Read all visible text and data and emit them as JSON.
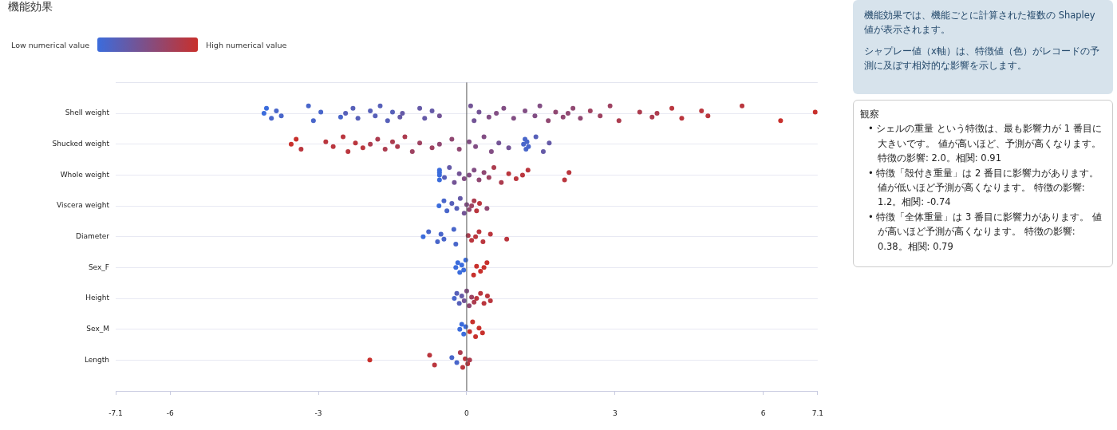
{
  "chart_data": {
    "type": "scatter",
    "orientation": "horizontal",
    "title": "機能効果",
    "categories": [
      "Shell weight",
      "Shucked weight",
      "Whole weight",
      "Viscera weight",
      "Diameter",
      "Sex_F",
      "Height",
      "Sex_M",
      "Length"
    ],
    "xlim": [
      -7.1,
      7.1
    ],
    "xticks": [
      -7.1,
      -6,
      -3,
      0,
      3,
      6,
      7.1
    ],
    "grid": "y",
    "ref_lines": [
      {
        "axis": "x",
        "value": 0,
        "color": "#555555"
      }
    ],
    "series": [
      {
        "x": [
          "Shell weight",
          "Shell weight",
          "Shell weight",
          "Shell weight",
          "Shell weight",
          "Shell weight",
          "Shell weight",
          "Shell weight",
          "Shell weight",
          "Shell weight",
          "Shell weight",
          "Shell weight",
          "Shell weight",
          "Shell weight",
          "Shell weight",
          "Shell weight",
          "Shell weight",
          "Shell weight",
          "Shell weight",
          "Shell weight",
          "Shell weight",
          "Shell weight",
          "Shell weight",
          "Shell weight",
          "Shell weight",
          "Shell weight",
          "Shell weight",
          "Shell weight",
          "Shell weight",
          "Shell weight",
          "Shell weight",
          "Shell weight",
          "Shell weight",
          "Shell weight",
          "Shell weight",
          "Shell weight",
          "Shell weight",
          "Shell weight",
          "Shell weight",
          "Shell weight",
          "Shell weight",
          "Shell weight",
          "Shell weight",
          "Shell weight",
          "Shell weight",
          "Shell weight",
          "Shell weight",
          "Shell weight",
          "Shell weight",
          "Shell weight",
          "Shell weight",
          "Shell weight",
          "Shell weight"
        ],
        "values": [
          -4.1,
          -4.05,
          -3.95,
          -3.85,
          -3.75,
          -3.2,
          -3.1,
          -2.95,
          -2.55,
          -2.45,
          -2.3,
          -2.2,
          -1.95,
          -1.85,
          -1.75,
          -1.6,
          -1.5,
          -1.35,
          -1.3,
          -0.95,
          -0.85,
          -0.7,
          -0.55,
          0.08,
          0.15,
          0.25,
          0.45,
          0.6,
          0.75,
          0.95,
          1.18,
          1.38,
          1.48,
          1.65,
          1.8,
          1.95,
          2.05,
          2.15,
          2.3,
          2.5,
          2.7,
          2.9,
          3.08,
          3.5,
          3.75,
          3.85,
          4.15,
          4.35,
          4.75,
          4.88,
          5.57,
          6.35,
          7.05
        ],
        "colors": [
          "#3b6cdc",
          "#3b6cdc",
          "#4966ca",
          "#4966ca",
          "#4966ca",
          "#4966ca",
          "#4966ca",
          "#4966ca",
          "#4966ca",
          "#5760b9",
          "#5760b9",
          "#5760b9",
          "#5760b9",
          "#5760b9",
          "#5760b9",
          "#5760b9",
          "#5760b9",
          "#655aa7",
          "#655aa7",
          "#655aa7",
          "#655aa7",
          "#655aa7",
          "#735496",
          "#735496",
          "#735496",
          "#735496",
          "#824e84",
          "#824e84",
          "#824e84",
          "#824e84",
          "#824e84",
          "#824e84",
          "#824e84",
          "#904872",
          "#904872",
          "#904872",
          "#904872",
          "#904872",
          "#904872",
          "#9e4261",
          "#9e4261",
          "#9e4261",
          "#ac3c4f",
          "#ac3c4f",
          "#ac3c4f",
          "#ac3c4f",
          "#ba363e",
          "#ba363e",
          "#ba363e",
          "#ba363e",
          "#ba363e",
          "#c8302c",
          "#c8302c"
        ]
      },
      {
        "x": [
          "Shucked weight",
          "Shucked weight",
          "Shucked weight",
          "Shucked weight",
          "Shucked weight",
          "Shucked weight",
          "Shucked weight",
          "Shucked weight",
          "Shucked weight",
          "Shucked weight",
          "Shucked weight",
          "Shucked weight",
          "Shucked weight",
          "Shucked weight",
          "Shucked weight",
          "Shucked weight",
          "Shucked weight",
          "Shucked weight",
          "Shucked weight",
          "Shucked weight",
          "Shucked weight",
          "Shucked weight",
          "Shucked weight",
          "Shucked weight",
          "Shucked weight",
          "Shucked weight",
          "Shucked weight",
          "Shucked weight",
          "Shucked weight",
          "Shucked weight",
          "Shucked weight",
          "Shucked weight",
          "Shucked weight",
          "Shucked weight",
          "Shucked weight"
        ],
        "values": [
          -3.55,
          -3.45,
          -3.35,
          -2.85,
          -2.7,
          -2.5,
          -2.4,
          -2.25,
          -2.1,
          -1.95,
          -1.8,
          -1.65,
          -1.5,
          -1.4,
          -1.25,
          -1.1,
          -0.95,
          -0.7,
          -0.55,
          -0.3,
          -0.15,
          0.05,
          0.18,
          0.35,
          0.5,
          0.65,
          0.85,
          1.15,
          1.18,
          1.2,
          1.22,
          1.25,
          1.4,
          1.55,
          1.67
        ],
        "colors": [
          "#c8302c",
          "#c8302c",
          "#ba363e",
          "#ba363e",
          "#ba363e",
          "#ba363e",
          "#ba363e",
          "#ba363e",
          "#ba363e",
          "#ac3c4f",
          "#ac3c4f",
          "#ac3c4f",
          "#ac3c4f",
          "#ac3c4f",
          "#ac3c4f",
          "#9e4261",
          "#9e4261",
          "#9e4261",
          "#904872",
          "#904872",
          "#904872",
          "#824e84",
          "#824e84",
          "#824e84",
          "#824e84",
          "#735496",
          "#735496",
          "#4966ca",
          "#4966ca",
          "#4966ca",
          "#4966ca",
          "#4966ca",
          "#5760b9",
          "#655aa7",
          "#655aa7"
        ]
      },
      {
        "x": [
          "Whole weight",
          "Whole weight",
          "Whole weight",
          "Whole weight",
          "Whole weight",
          "Whole weight",
          "Whole weight",
          "Whole weight",
          "Whole weight",
          "Whole weight",
          "Whole weight",
          "Whole weight",
          "Whole weight",
          "Whole weight",
          "Whole weight",
          "Whole weight",
          "Whole weight",
          "Whole weight",
          "Whole weight",
          "Whole weight",
          "Whole weight",
          "Whole weight"
        ],
        "values": [
          -0.55,
          -0.55,
          -0.55,
          -0.55,
          -0.45,
          -0.35,
          -0.25,
          -0.15,
          -0.05,
          0.05,
          0.15,
          0.25,
          0.35,
          0.45,
          0.55,
          0.7,
          0.85,
          1.0,
          1.13,
          1.24,
          1.98,
          2.07
        ],
        "colors": [
          "#3b6cdc",
          "#3b6cdc",
          "#3b6cdc",
          "#3b6cdc",
          "#5760b9",
          "#655aa7",
          "#735496",
          "#735496",
          "#824e84",
          "#824e84",
          "#824e84",
          "#904872",
          "#904872",
          "#9e4261",
          "#ac3c4f",
          "#ac3c4f",
          "#ba363e",
          "#ba363e",
          "#ba363e",
          "#ba363e",
          "#ba363e",
          "#ba363e"
        ]
      },
      {
        "x": [
          "Viscera weight",
          "Viscera weight",
          "Viscera weight",
          "Viscera weight",
          "Viscera weight",
          "Viscera weight",
          "Viscera weight",
          "Viscera weight",
          "Viscera weight",
          "Viscera weight",
          "Viscera weight",
          "Viscera weight",
          "Viscera weight",
          "Viscera weight"
        ],
        "values": [
          -0.56,
          -0.46,
          -0.4,
          -0.3,
          -0.2,
          -0.13,
          -0.05,
          0.0,
          0.05,
          0.1,
          0.15,
          0.2,
          0.26,
          0.41
        ],
        "colors": [
          "#3b6cdc",
          "#4966ca",
          "#4966ca",
          "#5760b9",
          "#5760b9",
          "#655aa7",
          "#735496",
          "#824e84",
          "#904872",
          "#9e4261",
          "#ac3c4f",
          "#ba363e",
          "#ba363e",
          "#904872"
        ]
      },
      {
        "x": [
          "Diameter",
          "Diameter",
          "Diameter",
          "Diameter",
          "Diameter",
          "Diameter",
          "Diameter",
          "Diameter",
          "Diameter",
          "Diameter",
          "Diameter",
          "Diameter",
          "Diameter",
          "Diameter"
        ],
        "values": [
          -0.88,
          -0.77,
          -0.59,
          -0.52,
          -0.46,
          -0.26,
          -0.22,
          0.03,
          0.1,
          0.18,
          0.25,
          0.33,
          0.48,
          0.81
        ],
        "colors": [
          "#3b6cdc",
          "#4966ca",
          "#4966ca",
          "#4966ca",
          "#4966ca",
          "#4966ca",
          "#4966ca",
          "#ac3c4f",
          "#ba363e",
          "#ba363e",
          "#ba363e",
          "#ba363e",
          "#ba363e",
          "#ba363e"
        ]
      },
      {
        "x": [
          "Sex_F",
          "Sex_F",
          "Sex_F",
          "Sex_F",
          "Sex_F",
          "Sex_F",
          "Sex_F",
          "Sex_F",
          "Sex_F",
          "Sex_F",
          "Sex_F"
        ],
        "values": [
          -0.22,
          -0.18,
          -0.14,
          -0.1,
          -0.06,
          -0.02,
          0.14,
          0.2,
          0.28,
          0.35,
          0.41
        ],
        "colors": [
          "#3b6cdc",
          "#3b6cdc",
          "#3b6cdc",
          "#3b6cdc",
          "#3b6cdc",
          "#3b6cdc",
          "#c8302c",
          "#c8302c",
          "#c8302c",
          "#c8302c",
          "#c8302c"
        ]
      },
      {
        "x": [
          "Height",
          "Height",
          "Height",
          "Height",
          "Height",
          "Height",
          "Height",
          "Height",
          "Height",
          "Height",
          "Height",
          "Height",
          "Height",
          "Height"
        ],
        "values": [
          -0.25,
          -0.2,
          -0.15,
          -0.1,
          -0.05,
          0.0,
          0.05,
          0.1,
          0.15,
          0.2,
          0.28,
          0.35,
          0.42,
          0.48
        ],
        "colors": [
          "#4966ca",
          "#5760b9",
          "#5760b9",
          "#655aa7",
          "#735496",
          "#824e84",
          "#904872",
          "#9e4261",
          "#ac3c4f",
          "#ba363e",
          "#ba363e",
          "#ba363e",
          "#ba363e",
          "#ba363e"
        ]
      },
      {
        "x": [
          "Sex_M",
          "Sex_M",
          "Sex_M",
          "Sex_M",
          "Sex_M",
          "Sex_M",
          "Sex_M",
          "Sex_M",
          "Sex_M"
        ],
        "values": [
          -0.14,
          -0.1,
          -0.06,
          -0.02,
          0.06,
          0.12,
          0.18,
          0.25,
          0.32
        ],
        "colors": [
          "#3b6cdc",
          "#3b6cdc",
          "#3b6cdc",
          "#3b6cdc",
          "#c8302c",
          "#c8302c",
          "#c8302c",
          "#c8302c",
          "#c8302c"
        ]
      },
      {
        "x": [
          "Length",
          "Length",
          "Length",
          "Length",
          "Length",
          "Length",
          "Length",
          "Length",
          "Length",
          "Length"
        ],
        "values": [
          -1.96,
          -0.75,
          -0.65,
          -0.3,
          -0.2,
          -0.13,
          -0.08,
          -0.03,
          0.02,
          0.06
        ],
        "colors": [
          "#c8302c",
          "#ba363e",
          "#ba363e",
          "#4966ca",
          "#4966ca",
          "#ac3c4f",
          "#ba363e",
          "#ba363e",
          "#ba363e",
          "#ac3c4f"
        ]
      }
    ],
    "annotations": [
      "Low numerical value",
      "High numerical value",
      "機能効果では、機能ごとに計算された複数の Shapley 値が表示されます。",
      "シャプレー値（x軸）は、特徴値（色）がレコードの予測に及ぼす相対的な影響を示します。",
      "観察",
      "• シェルの重量 という特徴は、最も影響力が 1 番目に大きいです。 値が高いほど、予測が高くなります。特徴の影響: 2.0。相関: 0.91",
      "• 特徴「殻付き重量」は 2 番目に影響力があります。値が低いほど予測が高くなります。 特徴の影響: 1.2。相関: -0.74",
      "• 特徴「全体重量」は 3 番目に影響力があります。 値が高いほど予測が高くなります。 特徴の影響: 0.38。相関: 0.79"
    ]
  }
}
